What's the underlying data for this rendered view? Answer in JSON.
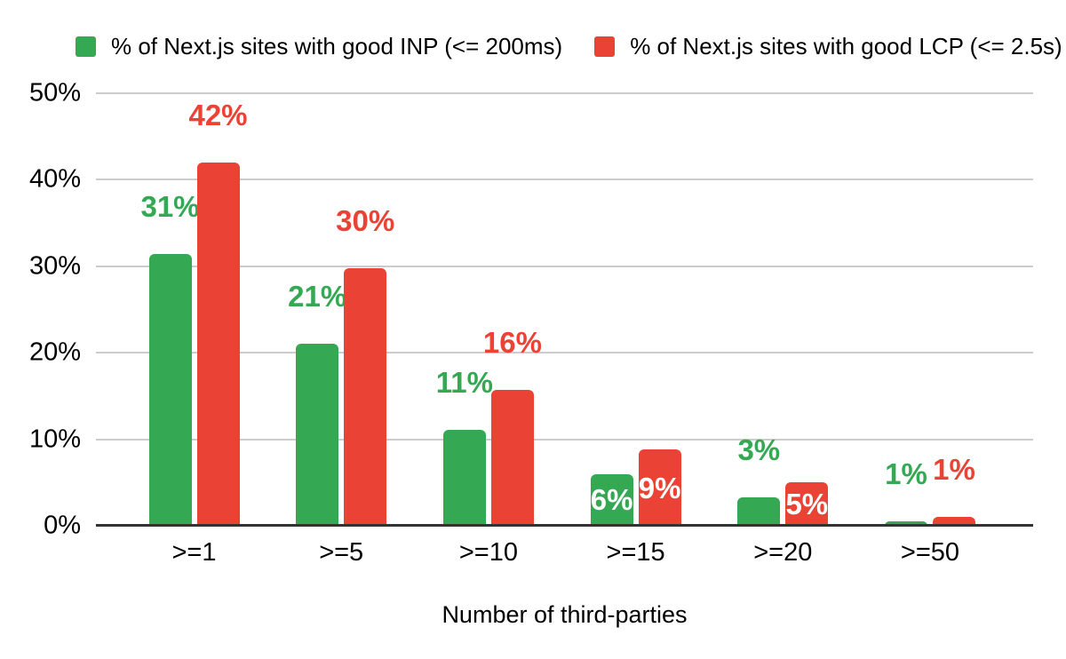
{
  "chart_data": {
    "type": "bar",
    "title": "",
    "categories": [
      ">=1",
      ">=5",
      ">=10",
      ">=15",
      ">=20",
      ">=50"
    ],
    "series": [
      {
        "key": "inp",
        "name": "% of Next.js sites with good INP (<= 200ms)",
        "color": "#34a853",
        "values": [
          31.4,
          21.0,
          11.1,
          6.0,
          3.3,
          0.5
        ],
        "labels": [
          "31%",
          "21%",
          "11%",
          "6%",
          "3%",
          "1%"
        ],
        "label_placement": [
          "above",
          "above",
          "above",
          "inside",
          "above",
          "above"
        ]
      },
      {
        "key": "lcp",
        "name": "% of Next.js sites with good LCP (<= 2.5s)",
        "color": "#ea4335",
        "values": [
          42.0,
          29.8,
          15.7,
          8.8,
          5.0,
          1.0
        ],
        "labels": [
          "42%",
          "30%",
          "16%",
          "9%",
          "5%",
          "1%"
        ],
        "label_placement": [
          "above",
          "above",
          "above",
          "inside",
          "inside",
          "above"
        ]
      }
    ],
    "xlabel": "Number of third-parties",
    "ylabel": "",
    "ylim": [
      0,
      50
    ],
    "ytick_step": 10,
    "ytick_labels": [
      "0%",
      "10%",
      "20%",
      "30%",
      "40%",
      "50%"
    ],
    "grid": true,
    "legend_position": "top",
    "colors": {
      "gridline": "#cccccc",
      "axis_line": "#333333",
      "text": "#000000",
      "inside_label": "#ffffff"
    }
  }
}
